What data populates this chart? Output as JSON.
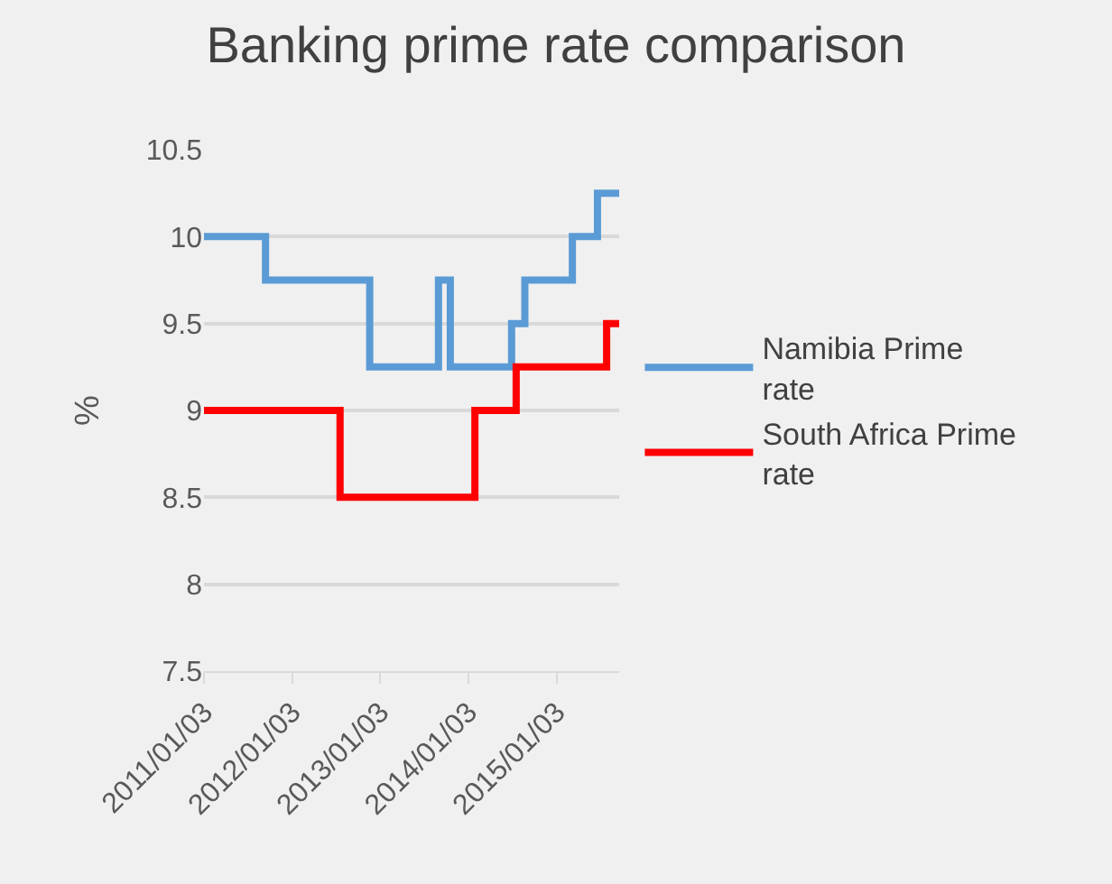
{
  "chart_data": {
    "type": "step",
    "title": "Banking prime rate comparison",
    "ylabel": "%",
    "series": [
      {
        "name": "Namibia Prime rate",
        "color": "#5b9bd5",
        "x": [
          "2011-01-03",
          "2011-09-15",
          "2012-11-20",
          "2013-09-01",
          "2013-10-20",
          "2014-07-01",
          "2014-08-25",
          "2015-03-10",
          "2015-06-22",
          "2015-09-20"
        ],
        "values": [
          10,
          9.75,
          9.25,
          9.75,
          9.25,
          9.5,
          9.75,
          10,
          10.25,
          10.25
        ]
      },
      {
        "name": "South Africa Prime rate",
        "color": "#ff0000",
        "x": [
          "2011-01-03",
          "2012-07-20",
          "2014-01-30",
          "2014-07-20",
          "2015-07-30",
          "2015-09-20"
        ],
        "values": [
          9,
          8.5,
          9,
          9.25,
          9.5,
          9.5
        ]
      }
    ],
    "xlim": [
      "2011-01-03",
      "2015-09-20"
    ],
    "xticks": [
      {
        "value": "2011-01-03",
        "label": "2011/01/03"
      },
      {
        "value": "2012-01-03",
        "label": "2012/01/03"
      },
      {
        "value": "2013-01-03",
        "label": "2013/01/03"
      },
      {
        "value": "2014-01-03",
        "label": "2014/01/03"
      },
      {
        "value": "2015-01-03",
        "label": "2015/01/03"
      }
    ],
    "ylim": [
      7.5,
      10.5
    ],
    "yticks": [
      7.5,
      8,
      8.5,
      9,
      9.5,
      10,
      10.5
    ],
    "grid": "y",
    "legend": "right",
    "line_style": "solid",
    "marker": "none"
  }
}
